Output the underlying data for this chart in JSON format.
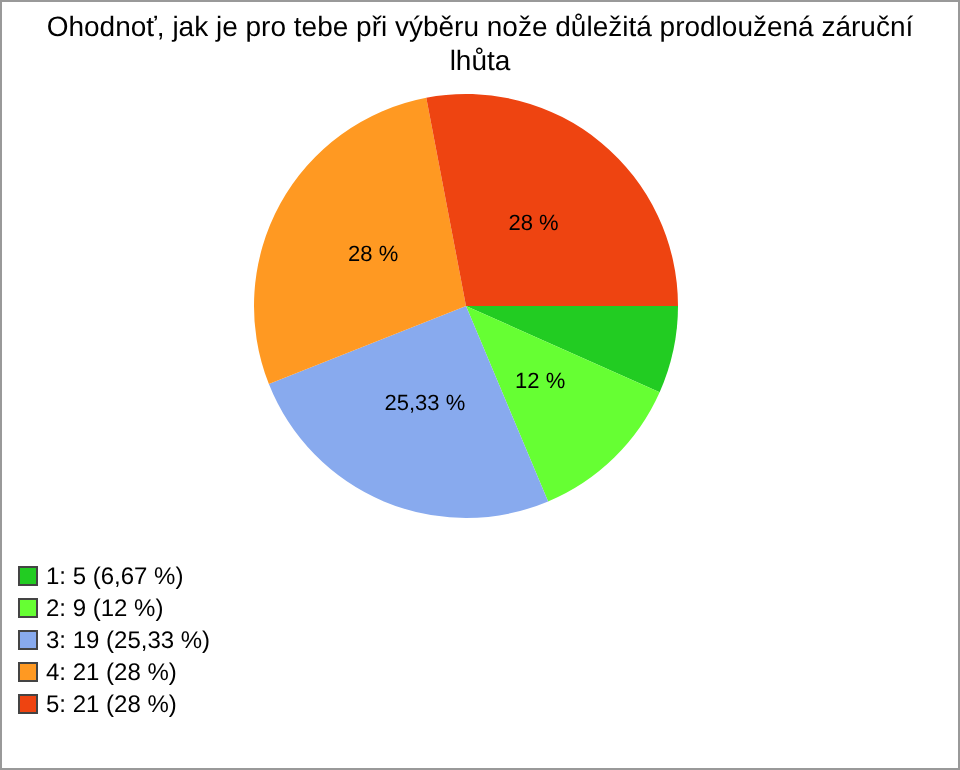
{
  "chart_data": {
    "type": "pie",
    "title": "Ohodnoť, jak je pro tebe při výběru nože důležitá prodloužená záruční lhůta",
    "categories": [
      "1: 5 (6,67 %)",
      "2: 9 (12 %)",
      "3: 19 (25,33 %)",
      "4: 21 (28 %)",
      "5: 21 (28 %)"
    ],
    "values": [
      6.67,
      12,
      25.33,
      28,
      28
    ],
    "colors": [
      "#22cc22",
      "#66ff33",
      "#88aaee",
      "#ff9922",
      "#ee4411"
    ],
    "value_labels": [
      null,
      "12 %",
      "25,33 %",
      "28 %",
      "28 %"
    ],
    "legend": "bottom left"
  }
}
